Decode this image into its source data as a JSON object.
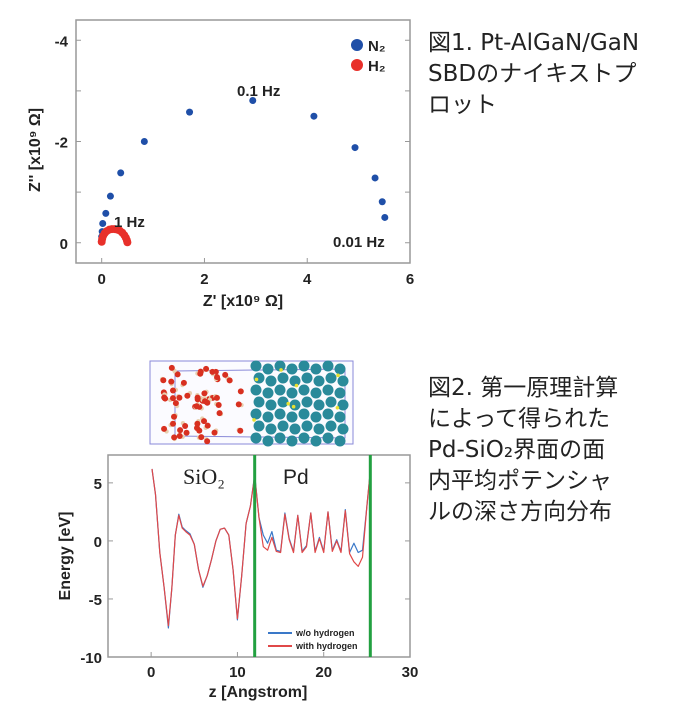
{
  "caption1": {
    "lines": [
      "図1. Pt-AlGaN/GaN",
      "SBDのナイキストプ",
      "ロット"
    ]
  },
  "caption2": {
    "lines": [
      "図2. 第一原理計算",
      "によって得られた",
      "Pd-SiO₂界面の面",
      "内平均ポテンシャ",
      "ルの深さ方向分布"
    ]
  },
  "chart_data": [
    {
      "type": "scatter",
      "title": "",
      "xlabel": "Z' [x10⁹ Ω]",
      "ylabel": "Z'' [x10⁹ Ω]",
      "xlim": [
        -0.5,
        6
      ],
      "ylim": [
        0.4,
        -4.4
      ],
      "xticks": [
        "0",
        "2",
        "4",
        "6"
      ],
      "xtick_values": [
        0,
        2,
        4,
        6
      ],
      "yticks": [
        "-4",
        "-2",
        "0"
      ],
      "ytick_values": [
        -4,
        -2,
        0
      ],
      "legend": [
        "N₂",
        "H₂"
      ],
      "legend_position": "top-right",
      "annotations": [
        "0.1 Hz",
        "1 Hz",
        "0.01 Hz"
      ],
      "series": [
        {
          "name": "N₂",
          "color": "#1f4fa8",
          "x": [
            0,
            0,
            0.01,
            0.02,
            0.08,
            0.17,
            0.37,
            0.83,
            1.71,
            2.94,
            4.13,
            4.93,
            5.32,
            5.46,
            5.51
          ],
          "y": [
            -0.05,
            -0.12,
            -0.22,
            -0.38,
            -0.58,
            -0.92,
            -1.38,
            -2.0,
            -2.58,
            -2.81,
            -2.5,
            -1.88,
            -1.28,
            -0.81,
            -0.5
          ]
        },
        {
          "name": "H₂",
          "color": "#e8302a",
          "x": [
            0,
            0.01,
            0.03,
            0.06,
            0.1,
            0.15,
            0.2,
            0.25,
            0.3,
            0.35,
            0.4,
            0.44,
            0.47,
            0.49,
            0.5
          ],
          "y": [
            -0.02,
            -0.08,
            -0.14,
            -0.19,
            -0.23,
            -0.26,
            -0.27,
            -0.27,
            -0.26,
            -0.24,
            -0.2,
            -0.15,
            -0.1,
            -0.05,
            -0.01
          ]
        }
      ]
    },
    {
      "type": "line",
      "title": "",
      "xlabel": "z [Angstrom]",
      "ylabel": "Energy [eV]",
      "xlim": [
        -5,
        30
      ],
      "ylim": [
        -10,
        7.4
      ],
      "xticks": [
        "0",
        "10",
        "20",
        "30"
      ],
      "xtick_values": [
        0,
        10,
        20,
        30
      ],
      "yticks": [
        "5",
        "0",
        "-5",
        "-10"
      ],
      "ytick_values": [
        5,
        0,
        -5,
        -10
      ],
      "region_labels": [
        "SiO₂",
        "Pd"
      ],
      "interfaces_z": [
        12.0,
        25.4
      ],
      "interface_color": "#22a040",
      "legend": [
        "w/o hydrogen",
        "with hydrogen"
      ],
      "legend_position": "bottom-right",
      "series": [
        {
          "name": "w/o hydrogen",
          "color": "#3a78c8",
          "x": [
            0.1,
            0.5,
            1,
            1.5,
            2,
            2.4,
            2.8,
            3.2,
            3.6,
            4,
            4.5,
            5,
            5.5,
            6,
            6.5,
            7,
            7.5,
            8,
            8.5,
            9,
            9.5,
            10,
            10.5,
            11,
            11.5,
            12,
            12.5,
            13,
            13.5,
            14,
            14.5,
            15,
            15.5,
            16,
            16.5,
            17,
            17.5,
            18,
            18.5,
            19,
            19.5,
            20,
            20.5,
            21,
            21.5,
            22,
            22.5,
            23,
            23.5,
            24,
            24.5,
            25,
            25.4
          ],
          "y": [
            6.2,
            4,
            -1,
            -4,
            -7.5,
            -4,
            0.5,
            2.3,
            1.2,
            0.9,
            0.6,
            -0.3,
            -2.5,
            -4,
            -3,
            -1.6,
            0,
            1,
            1.1,
            0.5,
            -2.5,
            -6.8,
            -3,
            1.5,
            3,
            5.7,
            2,
            0.5,
            -0.2,
            0.8,
            -0.8,
            -0.9,
            2.4,
            0.2,
            -0.9,
            2.2,
            -0.9,
            -0.4,
            2.4,
            -0.9,
            0.3,
            -0.9,
            2.5,
            -0.8,
            0.1,
            -0.9,
            2.7,
            -1,
            -0.2,
            -1,
            -0.8,
            3,
            6
          ]
        },
        {
          "name": "with hydrogen",
          "color": "#e04848",
          "x": [
            0.1,
            0.5,
            1,
            1.5,
            2,
            2.4,
            2.8,
            3.2,
            3.6,
            4,
            4.5,
            5,
            5.5,
            6,
            6.5,
            7,
            7.5,
            8,
            8.5,
            9,
            9.5,
            10,
            10.5,
            11,
            11.5,
            12,
            12.5,
            13,
            13.5,
            14,
            14.5,
            15,
            15.5,
            16,
            16.5,
            17,
            17.5,
            18,
            18.5,
            19,
            19.5,
            20,
            20.5,
            21,
            21.5,
            22,
            22.5,
            23,
            23.5,
            24,
            24.5,
            25,
            25.4
          ],
          "y": [
            6.2,
            4,
            -1,
            -4,
            -7.3,
            -4,
            0.5,
            2.2,
            1.1,
            0.8,
            0.5,
            -0.3,
            -2.5,
            -3.9,
            -3,
            -1.6,
            0,
            1,
            1.1,
            0.5,
            -2.5,
            -6.7,
            -3,
            1.5,
            3,
            5.6,
            2,
            -0.5,
            -0.8,
            0.3,
            -0.9,
            -1,
            2.3,
            0.1,
            -1,
            2.2,
            -1,
            -0.5,
            2.4,
            -1,
            0.2,
            -1,
            2.5,
            -0.9,
            0,
            -1,
            2.6,
            -1.1,
            -1.8,
            -2.2,
            -1.4,
            3,
            6
          ]
        }
      ]
    }
  ]
}
